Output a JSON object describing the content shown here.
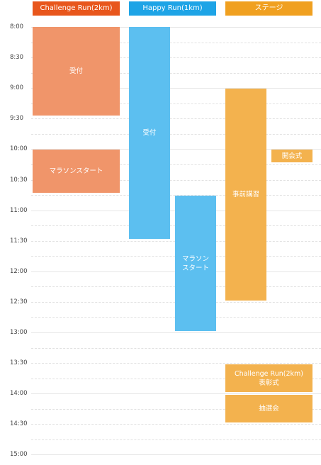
{
  "headers": [
    {
      "label": "Challenge Run(2km)",
      "color": "#e8561c"
    },
    {
      "label": "Happy Run(1km)",
      "color": "#1ea4e6"
    },
    {
      "label": "ステージ",
      "color": "#f0a020"
    }
  ],
  "times": [
    "8:00",
    "8:30",
    "9:00",
    "9:30",
    "10:00",
    "10:30",
    "11:00",
    "11:30",
    "12:00",
    "12:30",
    "13:00",
    "13:30",
    "14:00",
    "14:30",
    "15:00"
  ],
  "blocks": {
    "challenge_reception": "受付",
    "challenge_start": "マラソンスタート",
    "happy_reception": "受付",
    "happy_start": "マラソン\nスタート",
    "stage_lecture": "事前講習",
    "stage_opening": "開会式",
    "stage_awards": "Challenge Run(2km)\n表彰式",
    "stage_lottery": "抽選会"
  }
}
